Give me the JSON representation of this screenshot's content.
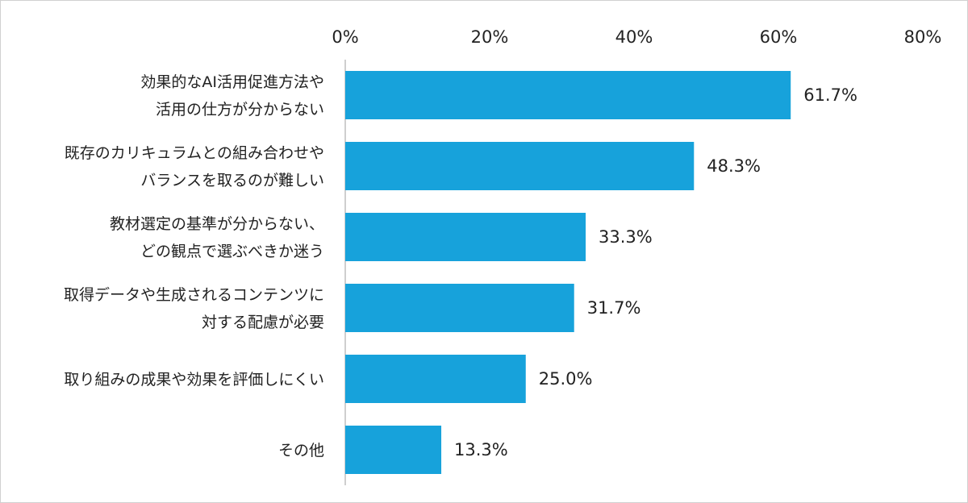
{
  "chart_data": {
    "type": "bar",
    "orientation": "horizontal",
    "categories": [
      [
        "効果的なAI活用促進方法や",
        "活用の仕方が分からない"
      ],
      [
        "既存のカリキュラムとの組み合わせや",
        "バランスを取るのが難しい"
      ],
      [
        "教材選定の基準が分からない、",
        "どの観点で選ぶべきか迷う"
      ],
      [
        "取得データや生成されるコンテンツに",
        "対する配慮が必要"
      ],
      [
        "取り組みの成果や効果を評価しにくい"
      ],
      [
        "その他"
      ]
    ],
    "values": [
      61.7,
      48.3,
      33.3,
      31.7,
      25.0,
      13.3
    ],
    "value_labels": [
      "61.7%",
      "48.3%",
      "33.3%",
      "31.7%",
      "25.0%",
      "13.3%"
    ],
    "xlim": [
      0,
      80
    ],
    "xticks": [
      0,
      20,
      40,
      60,
      80
    ],
    "xtick_labels": [
      "0%",
      "20%",
      "40%",
      "60%",
      "80%"
    ],
    "axis_position": "top",
    "grid": false,
    "legend": false,
    "bar_color": "#17a2db",
    "axis_color": "#bfbfbf"
  }
}
